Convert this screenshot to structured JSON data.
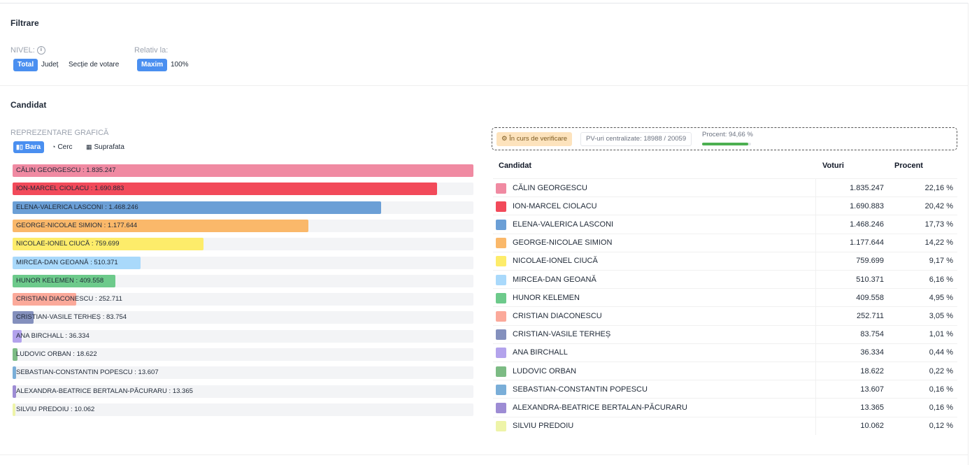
{
  "filters": {
    "title": "Filtrare",
    "level_label": "NIVEL:",
    "level_options": [
      "Total",
      "Județ",
      "Secție de votare"
    ],
    "relative_label": "Relativ la:",
    "relative_options": [
      "Maxim",
      "100%"
    ]
  },
  "candidate_section": {
    "title": "Candidat",
    "viz_label": "REPREZENTARE GRAFICĂ",
    "viz_options": [
      {
        "label": "Bara",
        "icon": "bar-chart-icon"
      },
      {
        "label": "Cerc",
        "icon": "pie-chart-icon"
      },
      {
        "label": "Suprafata",
        "icon": "grid-icon"
      }
    ]
  },
  "status": {
    "verification": "În curs de verificare",
    "pv": "PV-uri centralizate: 18988 / 20059",
    "percent_text": "Procent: 94,66 %",
    "percent_value": 94.66
  },
  "table": {
    "headers": {
      "candidate": "Candidat",
      "votes": "Voturi",
      "percent": "Procent"
    }
  },
  "chart_data": {
    "type": "bar",
    "orientation": "horizontal",
    "xlim": [
      0,
      1835247
    ],
    "categories": [
      "CĂLIN GEORGESCU",
      "ION-MARCEL CIOLACU",
      "ELENA-VALERICA LASCONI",
      "GEORGE-NICOLAE SIMION",
      "NICOLAE-IONEL CIUCĂ",
      "MIRCEA-DAN GEOANĂ",
      "HUNOR KELEMEN",
      "CRISTIAN DIACONESCU",
      "CRISTIAN-VASILE TERHEȘ",
      "ANA BIRCHALL",
      "LUDOVIC ORBAN",
      "SEBASTIAN-CONSTANTIN POPESCU",
      "ALEXANDRA-BEATRICE BERTALAN-PĂCURARU",
      "SILVIU PREDOIU"
    ],
    "values": [
      1835247,
      1690883,
      1468246,
      1177644,
      759699,
      510371,
      409558,
      252711,
      83754,
      36334,
      18622,
      13607,
      13365,
      10062
    ]
  },
  "candidates": [
    {
      "name": "CĂLIN GEORGESCU",
      "votes": "1.835.247",
      "percent": "22,16 %",
      "color": "#f08aa2"
    },
    {
      "name": "ION-MARCEL CIOLACU",
      "votes": "1.690.883",
      "percent": "20,42 %",
      "color": "#f24a5a"
    },
    {
      "name": "ELENA-VALERICA LASCONI",
      "votes": "1.468.246",
      "percent": "17,73 %",
      "color": "#6b9fd6"
    },
    {
      "name": "GEORGE-NICOLAE SIMION",
      "votes": "1.177.644",
      "percent": "14,22 %",
      "color": "#fab86a"
    },
    {
      "name": "NICOLAE-IONEL CIUCĂ",
      "votes": "759.699",
      "percent": "9,17 %",
      "color": "#fdec6a"
    },
    {
      "name": "MIRCEA-DAN GEOANĂ",
      "votes": "510.371",
      "percent": "6,16 %",
      "color": "#a9d9fb"
    },
    {
      "name": "HUNOR KELEMEN",
      "votes": "409.558",
      "percent": "4,95 %",
      "color": "#6dca8b"
    },
    {
      "name": "CRISTIAN DIACONESCU",
      "votes": "252.711",
      "percent": "3,05 %",
      "color": "#fba99a"
    },
    {
      "name": "CRISTIAN-VASILE TERHEȘ",
      "votes": "83.754",
      "percent": "1,01 %",
      "color": "#8490bd"
    },
    {
      "name": "ANA BIRCHALL",
      "votes": "36.334",
      "percent": "0,44 %",
      "color": "#b3a3ec"
    },
    {
      "name": "LUDOVIC ORBAN",
      "votes": "18.622",
      "percent": "0,22 %",
      "color": "#7cbb84"
    },
    {
      "name": "SEBASTIAN-CONSTANTIN POPESCU",
      "votes": "13.607",
      "percent": "0,16 %",
      "color": "#7aaed8"
    },
    {
      "name": "ALEXANDRA-BEATRICE BERTALAN-PĂCURARU",
      "votes": "13.365",
      "percent": "0,16 %",
      "color": "#9d8cd4"
    },
    {
      "name": "SILVIU PREDOIU",
      "votes": "10.062",
      "percent": "0,12 %",
      "color": "#eef4a8"
    }
  ]
}
